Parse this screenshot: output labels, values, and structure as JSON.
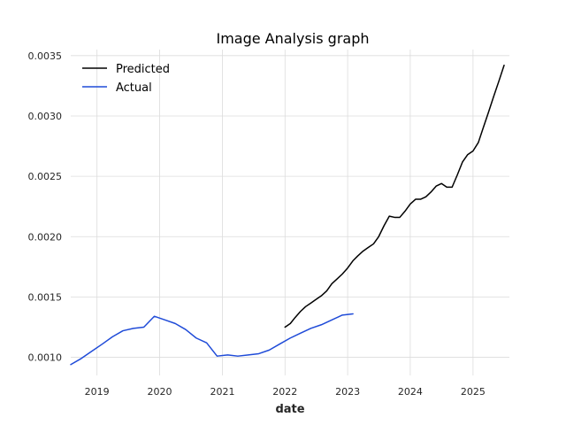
{
  "chart_data": {
    "type": "line",
    "title": "Image Analysis graph",
    "xlabel": "date",
    "ylabel": "",
    "x_type": "date",
    "xlim": [
      "2018-08-01",
      "2025-08-01"
    ],
    "ylim": [
      0.00085,
      0.00355
    ],
    "x_ticks": [
      "2019",
      "2020",
      "2021",
      "2022",
      "2023",
      "2024",
      "2025"
    ],
    "y_ticks": [
      "0.0010",
      "0.0015",
      "0.0020",
      "0.0025",
      "0.0030",
      "0.0035"
    ],
    "grid": true,
    "legend_position": "top-left",
    "series": [
      {
        "name": "Predicted",
        "color": "#000000",
        "points": [
          [
            "2022-01-01",
            0.00125
          ],
          [
            "2022-02-01",
            0.00128
          ],
          [
            "2022-03-01",
            0.00133
          ],
          [
            "2022-04-01",
            0.00138
          ],
          [
            "2022-05-01",
            0.00142
          ],
          [
            "2022-06-01",
            0.00145
          ],
          [
            "2022-07-01",
            0.00148
          ],
          [
            "2022-08-01",
            0.00151
          ],
          [
            "2022-09-01",
            0.00155
          ],
          [
            "2022-10-01",
            0.00161
          ],
          [
            "2022-11-01",
            0.00165
          ],
          [
            "2022-12-01",
            0.00169
          ],
          [
            "2023-01-01",
            0.00174
          ],
          [
            "2023-02-01",
            0.0018
          ],
          [
            "2023-03-01",
            0.00184
          ],
          [
            "2023-04-01",
            0.00188
          ],
          [
            "2023-05-01",
            0.00191
          ],
          [
            "2023-06-01",
            0.00194
          ],
          [
            "2023-07-01",
            0.002
          ],
          [
            "2023-08-01",
            0.00209
          ],
          [
            "2023-09-01",
            0.00217
          ],
          [
            "2023-10-01",
            0.00216
          ],
          [
            "2023-11-01",
            0.00216
          ],
          [
            "2023-12-01",
            0.00221
          ],
          [
            "2024-01-01",
            0.00227
          ],
          [
            "2024-02-01",
            0.00231
          ],
          [
            "2024-03-01",
            0.00231
          ],
          [
            "2024-04-01",
            0.00233
          ],
          [
            "2024-05-01",
            0.00237
          ],
          [
            "2024-06-01",
            0.00242
          ],
          [
            "2024-07-01",
            0.00244
          ],
          [
            "2024-08-01",
            0.00241
          ],
          [
            "2024-09-01",
            0.00241
          ],
          [
            "2024-10-01",
            0.00251
          ],
          [
            "2024-11-01",
            0.00262
          ],
          [
            "2024-12-01",
            0.00268
          ],
          [
            "2025-01-01",
            0.00271
          ],
          [
            "2025-02-01",
            0.00278
          ],
          [
            "2025-03-01",
            0.0029
          ],
          [
            "2025-04-01",
            0.00303
          ],
          [
            "2025-05-01",
            0.00316
          ],
          [
            "2025-06-01",
            0.00329
          ],
          [
            "2025-07-01",
            0.00342
          ]
        ]
      },
      {
        "name": "Actual",
        "color": "#1f4bd8",
        "points": [
          [
            "2018-08-01",
            0.00094
          ],
          [
            "2018-10-01",
            0.00099
          ],
          [
            "2018-12-01",
            0.00105
          ],
          [
            "2019-02-01",
            0.00111
          ],
          [
            "2019-04-01",
            0.00117
          ],
          [
            "2019-06-01",
            0.00122
          ],
          [
            "2019-08-01",
            0.00124
          ],
          [
            "2019-10-01",
            0.00125
          ],
          [
            "2019-12-01",
            0.00134
          ],
          [
            "2020-02-01",
            0.00131
          ],
          [
            "2020-04-01",
            0.00128
          ],
          [
            "2020-06-01",
            0.00123
          ],
          [
            "2020-08-01",
            0.00116
          ],
          [
            "2020-10-01",
            0.00112
          ],
          [
            "2020-12-01",
            0.00101
          ],
          [
            "2021-02-01",
            0.00102
          ],
          [
            "2021-04-01",
            0.00101
          ],
          [
            "2021-06-01",
            0.00102
          ],
          [
            "2021-08-01",
            0.00103
          ],
          [
            "2021-10-01",
            0.00106
          ],
          [
            "2021-12-01",
            0.00111
          ],
          [
            "2022-02-01",
            0.00116
          ],
          [
            "2022-04-01",
            0.0012
          ],
          [
            "2022-06-01",
            0.00124
          ],
          [
            "2022-08-01",
            0.00127
          ],
          [
            "2022-10-01",
            0.00131
          ],
          [
            "2022-12-01",
            0.00135
          ],
          [
            "2023-02-01",
            0.00136
          ]
        ]
      }
    ]
  }
}
